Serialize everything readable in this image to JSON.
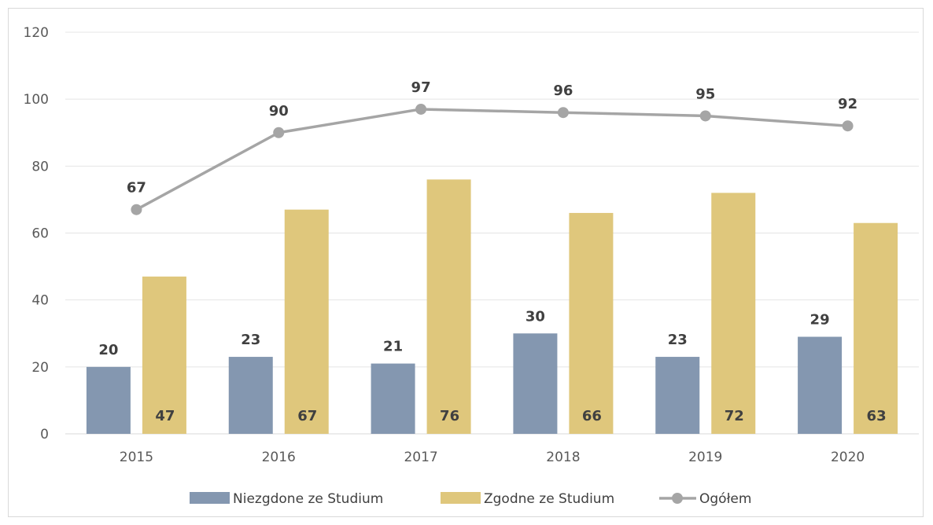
{
  "chart_data": {
    "type": "bar",
    "categories": [
      "2015",
      "2016",
      "2017",
      "2018",
      "2019",
      "2020"
    ],
    "series": [
      {
        "name": "Niezgdone ze Studium",
        "kind": "bar",
        "color": "#8497b0",
        "values": [
          20,
          23,
          21,
          30,
          23,
          29
        ]
      },
      {
        "name": "Zgodne ze Studium",
        "kind": "bar",
        "color": "#dfc77c",
        "values": [
          47,
          67,
          76,
          66,
          72,
          63
        ]
      },
      {
        "name": "Ogółem",
        "kind": "line",
        "color": "#a5a5a5",
        "values": [
          67,
          90,
          97,
          96,
          95,
          92
        ]
      }
    ],
    "y_ticks": [
      "0",
      "20",
      "40",
      "60",
      "80",
      "100",
      "120"
    ],
    "ylim": [
      0,
      120
    ],
    "grid": true,
    "legend_position": "bottom"
  }
}
